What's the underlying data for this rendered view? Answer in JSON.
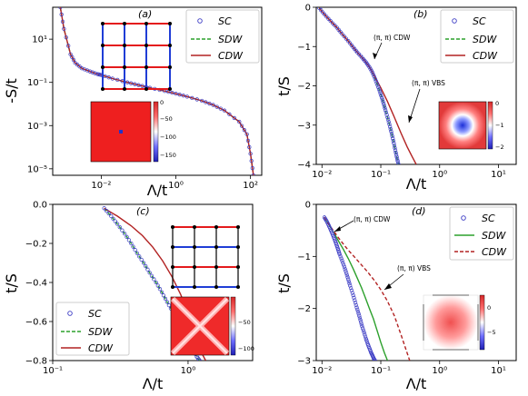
{
  "chart_data": [
    {
      "id": "a",
      "panel_label": "(a)",
      "type": "line",
      "xlabel": "Λ/t",
      "ylabel": "-S/t",
      "xscale": "log",
      "yscale": "log",
      "xlim": [
        0.0005,
        200
      ],
      "ylim": [
        5e-06,
        300
      ],
      "xticks": [
        {
          "v": 0.01,
          "label": "10^-2"
        },
        {
          "v": 1,
          "label": "10^0"
        },
        {
          "v": 100,
          "label": "10^2"
        }
      ],
      "yticks": [
        {
          "v": 1e-05,
          "label": "10^-5"
        },
        {
          "v": 0.001,
          "label": "10^-3"
        },
        {
          "v": 0.1,
          "label": "10^-1"
        },
        {
          "v": 10,
          "label": "10^1"
        }
      ],
      "legend": {
        "position": "top-right",
        "entries": [
          {
            "label": "SC",
            "style": "circle",
            "color": "#3b3bc4"
          },
          {
            "label": "SDW",
            "style": "dashed",
            "color": "#2ca02c"
          },
          {
            "label": "CDW",
            "style": "solid",
            "color": "#b22222"
          }
        ]
      },
      "series": [
        {
          "name": "SC",
          "style": "circle",
          "color": "#3b3bc4",
          "x": [
            0.0008,
            0.001,
            0.0015,
            0.002,
            0.003,
            0.005,
            0.008,
            0.01,
            0.02,
            0.05,
            0.1,
            0.2,
            0.5,
            1,
            2,
            5,
            10,
            20,
            50,
            80,
            100,
            120
          ],
          "y": [
            300,
            30,
            2,
            0.8,
            0.45,
            0.32,
            0.24,
            0.22,
            0.15,
            0.1,
            0.075,
            0.056,
            0.04,
            0.03,
            0.022,
            0.014,
            0.009,
            0.005,
            0.0015,
            0.0004,
            5e-05,
            5e-06
          ]
        },
        {
          "name": "SDW",
          "style": "dashed",
          "color": "#2ca02c",
          "x": [
            0.0008,
            0.001,
            0.0015,
            0.002,
            0.003,
            0.005,
            0.008,
            0.01,
            0.02,
            0.05,
            0.1,
            0.2,
            0.5,
            1,
            2,
            5,
            10,
            20,
            50,
            80,
            100,
            120
          ],
          "y": [
            300,
            30,
            2,
            0.8,
            0.45,
            0.32,
            0.24,
            0.22,
            0.15,
            0.1,
            0.075,
            0.056,
            0.04,
            0.03,
            0.022,
            0.014,
            0.009,
            0.005,
            0.0015,
            0.0004,
            5e-05,
            5e-06
          ]
        },
        {
          "name": "CDW",
          "style": "solid",
          "color": "#b22222",
          "x": [
            0.0008,
            0.001,
            0.0015,
            0.002,
            0.003,
            0.005,
            0.008,
            0.01,
            0.02,
            0.05,
            0.1,
            0.2,
            0.5,
            1,
            2,
            5,
            10,
            20,
            50,
            80,
            100,
            120
          ],
          "y": [
            300,
            30,
            2,
            0.8,
            0.45,
            0.32,
            0.24,
            0.22,
            0.15,
            0.1,
            0.075,
            0.056,
            0.04,
            0.03,
            0.022,
            0.014,
            0.009,
            0.005,
            0.0015,
            0.0004,
            5e-05,
            5e-06
          ]
        }
      ],
      "inset_colorbar_ticks": [
        "0",
        "−50",
        "−100",
        "−150"
      ],
      "inset_lattice": "4x4 square grid, blue vertical bonds, red horizontal bonds"
    },
    {
      "id": "b",
      "panel_label": "(b)",
      "type": "line",
      "xlabel": "Λ/t",
      "ylabel": "t/S",
      "xscale": "log",
      "yscale": "linear",
      "xlim": [
        0.008,
        20
      ],
      "ylim": [
        -4,
        0
      ],
      "xticks": [
        {
          "v": 0.01,
          "label": "10^-2"
        },
        {
          "v": 0.1,
          "label": "10^-1"
        },
        {
          "v": 1,
          "label": "10^0"
        },
        {
          "v": 10,
          "label": "10^1"
        }
      ],
      "yticks": [
        {
          "v": -4,
          "label": "−4"
        },
        {
          "v": -3,
          "label": "−3"
        },
        {
          "v": -2,
          "label": "−2"
        },
        {
          "v": -1,
          "label": "−1"
        },
        {
          "v": 0,
          "label": "0"
        }
      ],
      "legend": {
        "position": "top-right",
        "entries": [
          {
            "label": "SC",
            "style": "circle",
            "color": "#3b3bc4"
          },
          {
            "label": "SDW",
            "style": "dashed",
            "color": "#2ca02c"
          },
          {
            "label": "CDW",
            "style": "solid",
            "color": "#b22222"
          }
        ]
      },
      "annotations": [
        {
          "text": "(π, π) CDW",
          "at": [
            0.065,
            -1.45
          ]
        },
        {
          "text": "(π, π) VBS",
          "at": [
            0.4,
            -2.9
          ]
        }
      ],
      "series": [
        {
          "name": "SC",
          "style": "circle",
          "color": "#3b3bc4",
          "x": [
            0.009,
            0.011,
            0.014,
            0.018,
            0.022,
            0.028,
            0.034,
            0.04,
            0.048,
            0.056,
            0.064,
            0.072,
            0.08,
            0.088,
            0.096,
            0.104,
            0.112,
            0.12,
            0.13,
            0.14,
            0.15,
            0.16,
            0.17,
            0.18,
            0.19,
            0.2
          ],
          "y": [
            -0.02,
            -0.18,
            -0.35,
            -0.52,
            -0.68,
            -0.86,
            -1.02,
            -1.15,
            -1.28,
            -1.4,
            -1.52,
            -1.66,
            -1.82,
            -1.98,
            -2.14,
            -2.3,
            -2.46,
            -2.62,
            -2.8,
            -2.98,
            -3.16,
            -3.34,
            -3.52,
            -3.7,
            -3.86,
            -4.0
          ]
        },
        {
          "name": "SDW",
          "style": "dashed",
          "color": "#2ca02c",
          "x": [
            0.009,
            0.011,
            0.014,
            0.018,
            0.022,
            0.028,
            0.034,
            0.04,
            0.048,
            0.056,
            0.064,
            0.072,
            0.08,
            0.088,
            0.096,
            0.104,
            0.112,
            0.12,
            0.13,
            0.14,
            0.15,
            0.16,
            0.17,
            0.18,
            0.19,
            0.2
          ],
          "y": [
            -0.02,
            -0.18,
            -0.35,
            -0.52,
            -0.68,
            -0.86,
            -1.02,
            -1.15,
            -1.28,
            -1.4,
            -1.52,
            -1.66,
            -1.82,
            -1.98,
            -2.14,
            -2.3,
            -2.46,
            -2.62,
            -2.8,
            -2.98,
            -3.16,
            -3.34,
            -3.52,
            -3.7,
            -3.86,
            -4.0
          ]
        },
        {
          "name": "CDW",
          "style": "solid",
          "color": "#b22222",
          "x": [
            0.009,
            0.011,
            0.014,
            0.018,
            0.022,
            0.028,
            0.034,
            0.04,
            0.048,
            0.056,
            0.064,
            0.07,
            0.08,
            0.1,
            0.13,
            0.17,
            0.22,
            0.28,
            0.34,
            0.4
          ],
          "y": [
            -0.02,
            -0.18,
            -0.35,
            -0.52,
            -0.68,
            -0.86,
            -1.02,
            -1.15,
            -1.28,
            -1.4,
            -1.52,
            -1.62,
            -1.78,
            -2.05,
            -2.4,
            -2.8,
            -3.2,
            -3.55,
            -3.8,
            -4.0
          ]
        }
      ],
      "inset_colorbar_ticks": [
        "0",
        "−1",
        "−2"
      ]
    },
    {
      "id": "c",
      "panel_label": "(c)",
      "type": "line",
      "xlabel": "Λ/t",
      "ylabel": "t/S",
      "xscale": "log",
      "yscale": "linear",
      "xlim": [
        0.1,
        3
      ],
      "ylim": [
        -0.8,
        0
      ],
      "xticks": [
        {
          "v": 0.1,
          "label": "10^-1"
        },
        {
          "v": 1,
          "label": "10^0"
        }
      ],
      "yticks": [
        {
          "v": -0.8,
          "label": "−0.8"
        },
        {
          "v": -0.6,
          "label": "−0.6"
        },
        {
          "v": -0.4,
          "label": "−0.4"
        },
        {
          "v": -0.2,
          "label": "−0.2"
        },
        {
          "v": 0,
          "label": "0.0"
        }
      ],
      "legend": {
        "position": "bottom-left",
        "entries": [
          {
            "label": "SC",
            "style": "circle",
            "color": "#3b3bc4"
          },
          {
            "label": "SDW",
            "style": "dashed",
            "color": "#2ca02c"
          },
          {
            "label": "CDW",
            "style": "solid",
            "color": "#b22222"
          }
        ]
      },
      "series": [
        {
          "name": "SC",
          "style": "circle",
          "color": "#3b3bc4",
          "x": [
            0.24,
            0.27,
            0.3,
            0.34,
            0.38,
            0.42,
            0.47,
            0.52,
            0.58,
            0.64,
            0.7,
            0.77,
            0.84,
            0.92,
            1.0,
            1.08,
            1.16,
            1.22
          ],
          "y": [
            -0.02,
            -0.06,
            -0.1,
            -0.15,
            -0.2,
            -0.25,
            -0.3,
            -0.35,
            -0.4,
            -0.45,
            -0.5,
            -0.55,
            -0.6,
            -0.65,
            -0.7,
            -0.74,
            -0.78,
            -0.8
          ]
        },
        {
          "name": "SDW",
          "style": "dashed",
          "color": "#2ca02c",
          "x": [
            0.24,
            0.27,
            0.3,
            0.34,
            0.38,
            0.42,
            0.47,
            0.52,
            0.58,
            0.64,
            0.7,
            0.77,
            0.84,
            0.92,
            1.0,
            1.08,
            1.16,
            1.22
          ],
          "y": [
            -0.02,
            -0.06,
            -0.1,
            -0.15,
            -0.2,
            -0.25,
            -0.3,
            -0.35,
            -0.4,
            -0.45,
            -0.5,
            -0.55,
            -0.6,
            -0.65,
            -0.7,
            -0.74,
            -0.78,
            -0.8
          ]
        },
        {
          "name": "CDW",
          "style": "solid",
          "color": "#b22222",
          "x": [
            0.24,
            0.3,
            0.38,
            0.46,
            0.55,
            0.65,
            0.76,
            0.88,
            1.0,
            1.1,
            1.2,
            1.28,
            1.35
          ],
          "y": [
            -0.02,
            -0.06,
            -0.11,
            -0.16,
            -0.22,
            -0.29,
            -0.37,
            -0.46,
            -0.56,
            -0.64,
            -0.72,
            -0.77,
            -0.8
          ]
        }
      ],
      "inset_colorbar_ticks": [
        "−50",
        "−100"
      ],
      "inset_lattice": "4x4 square grid, alternating blue and red horizontal bonds, black vertical bonds"
    },
    {
      "id": "d",
      "panel_label": "(d)",
      "type": "line",
      "xlabel": "Λ/t",
      "ylabel": "t/S",
      "xscale": "log",
      "yscale": "linear",
      "xlim": [
        0.008,
        20
      ],
      "ylim": [
        -3,
        0
      ],
      "xticks": [
        {
          "v": 0.01,
          "label": "10^-2"
        },
        {
          "v": 0.1,
          "label": "10^-1"
        },
        {
          "v": 1,
          "label": "10^0"
        },
        {
          "v": 10,
          "label": "10^1"
        }
      ],
      "yticks": [
        {
          "v": -3,
          "label": "−3"
        },
        {
          "v": -2,
          "label": "−2"
        },
        {
          "v": -1,
          "label": "−1"
        },
        {
          "v": 0,
          "label": "0"
        }
      ],
      "legend": {
        "position": "top-right",
        "entries": [
          {
            "label": "SC",
            "style": "circle",
            "color": "#3b3bc4"
          },
          {
            "label": "SDW",
            "style": "solid",
            "color": "#2ca02c"
          },
          {
            "label": "CDW",
            "style": "dashed",
            "color": "#b22222"
          }
        ]
      },
      "annotations": [
        {
          "text": "(π, π) CDW",
          "at": [
            0.015,
            -0.55
          ]
        },
        {
          "text": "(π, π) VBS",
          "at": [
            0.13,
            -1.6
          ]
        }
      ],
      "series": [
        {
          "name": "SC",
          "style": "circle",
          "color": "#3b3bc4",
          "x": [
            0.011,
            0.012,
            0.013,
            0.014,
            0.015,
            0.016,
            0.017,
            0.018,
            0.019,
            0.02,
            0.022,
            0.024,
            0.026,
            0.028,
            0.03,
            0.033,
            0.036,
            0.039,
            0.042,
            0.045,
            0.048,
            0.052,
            0.056,
            0.06,
            0.064,
            0.068,
            0.072,
            0.076,
            0.08
          ],
          "y": [
            -0.25,
            -0.32,
            -0.4,
            -0.48,
            -0.56,
            -0.64,
            -0.72,
            -0.8,
            -0.88,
            -0.96,
            -1.08,
            -1.2,
            -1.32,
            -1.44,
            -1.56,
            -1.7,
            -1.84,
            -1.98,
            -2.1,
            -2.22,
            -2.34,
            -2.46,
            -2.58,
            -2.68,
            -2.76,
            -2.84,
            -2.9,
            -2.96,
            -3.0
          ]
        },
        {
          "name": "SDW",
          "style": "solid",
          "color": "#2ca02c",
          "x": [
            0.011,
            0.013,
            0.016,
            0.019,
            0.023,
            0.028,
            0.034,
            0.04,
            0.047,
            0.055,
            0.064,
            0.075,
            0.088,
            0.1,
            0.115,
            0.13
          ],
          "y": [
            -0.25,
            -0.38,
            -0.55,
            -0.7,
            -0.86,
            -1.04,
            -1.24,
            -1.42,
            -1.6,
            -1.8,
            -2.0,
            -2.2,
            -2.45,
            -2.65,
            -2.85,
            -3.0
          ]
        },
        {
          "name": "CDW",
          "style": "dashed",
          "color": "#b22222",
          "x": [
            0.011,
            0.013,
            0.016,
            0.019,
            0.023,
            0.028,
            0.035,
            0.045,
            0.06,
            0.08,
            0.1,
            0.13,
            0.17,
            0.22,
            0.27,
            0.31
          ],
          "y": [
            -0.25,
            -0.38,
            -0.52,
            -0.64,
            -0.76,
            -0.88,
            -1.0,
            -1.14,
            -1.3,
            -1.48,
            -1.64,
            -1.86,
            -2.14,
            -2.5,
            -2.8,
            -3.0
          ]
        }
      ],
      "inset_colorbar_ticks": [
        "0",
        "−5"
      ]
    }
  ]
}
